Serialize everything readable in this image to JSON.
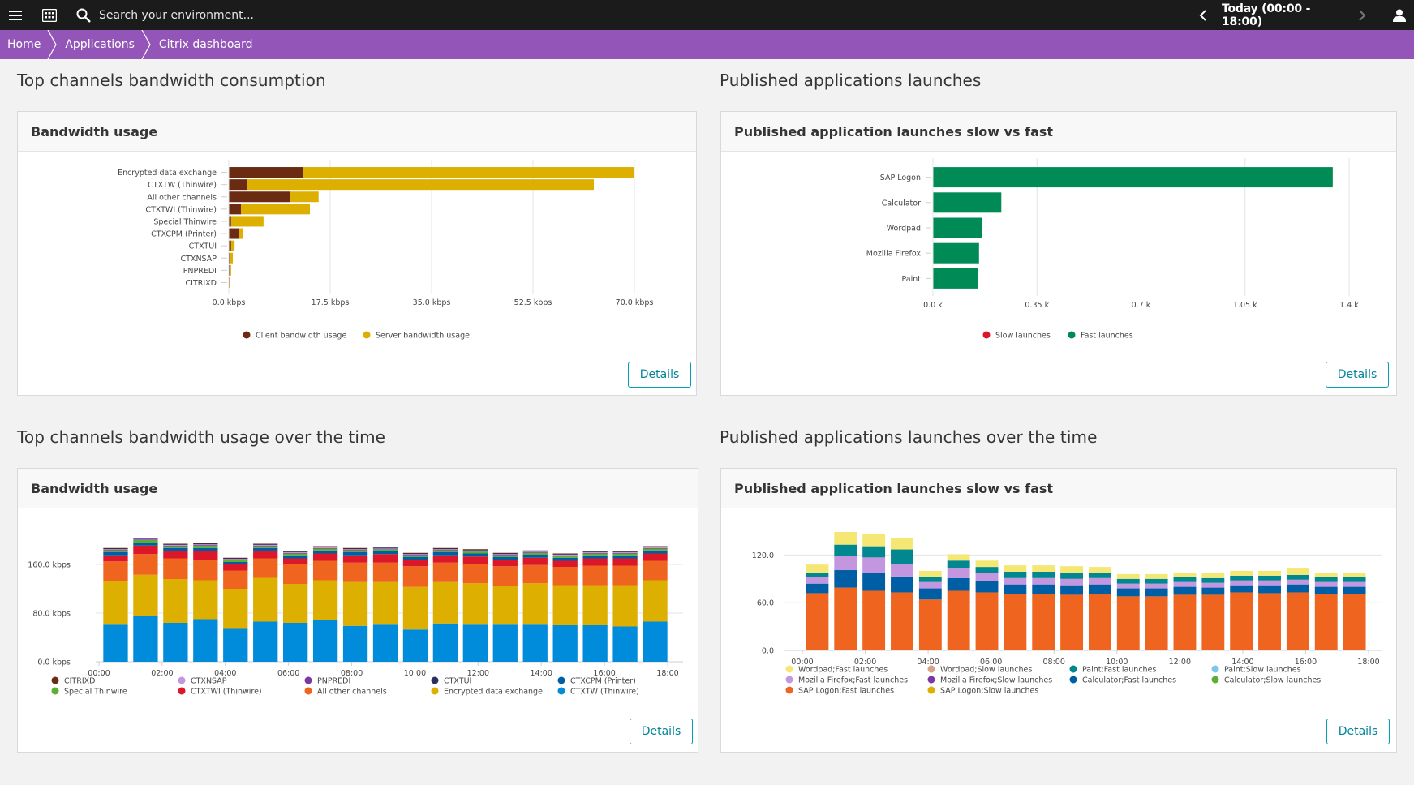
{
  "topbar": {
    "search_placeholder": "Search your environment...",
    "timeframe": "Today (00:00 - 18:00)",
    "menu_icon": "hamburger-menu-icon",
    "apps_icon": "apps-grid-icon",
    "search_icon": "search-icon",
    "prev_icon": "chevron-left-icon",
    "next_icon": "chevron-right-icon",
    "user_icon": "user-icon"
  },
  "breadcrumb": [
    "Home",
    "Applications",
    "Citrix dashboard"
  ],
  "sections": {
    "bandwidth_top": "Top channels bandwidth consumption",
    "launches_top": "Published applications launches",
    "bandwidth_time": "Top channels bandwidth usage over the time",
    "launches_time": "Published applications launches over the time"
  },
  "tiles": {
    "bandwidth_usage": "Bandwidth usage",
    "launches_slow_fast": "Published application launches slow vs fast",
    "bandwidth_usage_time": "Bandwidth usage",
    "launches_slow_fast_time": "Published application launches slow vs fast"
  },
  "details_label": "Details",
  "colors": {
    "accent_purple": "#9355b7",
    "topbar": "#1b1b1b",
    "button_border": "#00a1b2"
  },
  "chart_data": [
    {
      "id": "bandwidth-bar",
      "type": "bar",
      "orientation": "horizontal",
      "stacked": true,
      "categories": [
        "Encrypted data exchange",
        "CTXTW (Thinwire)",
        "All other channels",
        "CTXTWI (Thinwire)",
        "Special Thinwire",
        "CTXCPM (Printer)",
        "CTXTUI",
        "CTXNSAP",
        "PNPREDI",
        "CITRIXD"
      ],
      "series": [
        {
          "name": "Client bandwidth usage",
          "color": "#6b2a12",
          "values": [
            12.8,
            3.2,
            10.5,
            2.1,
            0.4,
            1.8,
            0.4,
            0.2,
            0.2,
            0.1
          ]
        },
        {
          "name": "Server bandwidth usage",
          "color": "#dcaf00",
          "values": [
            57.2,
            59.8,
            5.0,
            11.9,
            5.6,
            0.7,
            0.6,
            0.5,
            0.2,
            0.1
          ]
        }
      ],
      "x_ticks": [
        "0.0 kbps",
        "17.5 kbps",
        "35.0 kbps",
        "52.5 kbps",
        "70.0 kbps"
      ],
      "xlim": [
        0,
        70
      ],
      "unit": "kbps",
      "legend_position": "bottom",
      "grid": true
    },
    {
      "id": "launches-bar",
      "type": "bar",
      "orientation": "horizontal",
      "stacked": true,
      "categories": [
        "SAP Logon",
        "Calculator",
        "Wordpad",
        "Mozilla Firefox",
        "Paint"
      ],
      "series": [
        {
          "name": "Slow launches",
          "color": "#dc172a",
          "values": [
            0,
            0,
            0,
            0,
            0
          ]
        },
        {
          "name": "Fast launches",
          "color": "#008a55",
          "values": [
            1345,
            230,
            165,
            155,
            152
          ]
        }
      ],
      "x_ticks": [
        "0.0 k",
        "0.35 k",
        "0.7 k",
        "1.05 k",
        "1.4 k"
      ],
      "xlim": [
        0,
        1400
      ],
      "legend_position": "bottom",
      "grid": true
    },
    {
      "id": "bandwidth-time",
      "type": "bar",
      "stacked": true,
      "x_ticks": [
        "00:00",
        "02:00",
        "04:00",
        "06:00",
        "08:00",
        "10:00",
        "12:00",
        "14:00",
        "16:00",
        "18:00"
      ],
      "y_ticks": [
        "0.0 kbps",
        "80.0 kbps",
        "160.0 kbps"
      ],
      "ylim": [
        0,
        200
      ],
      "legend_position": "bottom",
      "grid": true,
      "series": [
        {
          "name": "CTXTW (Thinwire)",
          "color": "#008cdb",
          "values": [
            61,
            75,
            64,
            70,
            54,
            66,
            64,
            68,
            59,
            61,
            53,
            63,
            61,
            61,
            61,
            60,
            60,
            58,
            66
          ]
        },
        {
          "name": "Encrypted data exchange",
          "color": "#dcaf00",
          "values": [
            72,
            68,
            72,
            64,
            66,
            72,
            64,
            66,
            72,
            70,
            70,
            68,
            68,
            64,
            68,
            66,
            66,
            68,
            68
          ]
        },
        {
          "name": "All other channels",
          "color": "#ef651f",
          "values": [
            32,
            34,
            34,
            34,
            30,
            32,
            32,
            32,
            32,
            32,
            34,
            32,
            32,
            32,
            30,
            30,
            32,
            32,
            32
          ]
        },
        {
          "name": "CTXTWI (Thinwire)",
          "color": "#dc172a",
          "values": [
            10,
            14,
            12,
            14,
            10,
            12,
            10,
            12,
            12,
            14,
            10,
            12,
            12,
            10,
            12,
            10,
            12,
            12,
            12
          ]
        },
        {
          "name": "CTXCPM (Printer)",
          "color": "#005ea5",
          "values": [
            5,
            5,
            5,
            5,
            4,
            5,
            5,
            5,
            5,
            5,
            5,
            5,
            5,
            5,
            5,
            5,
            5,
            5,
            5
          ]
        },
        {
          "name": "Special Thinwire",
          "color": "#5ead35",
          "values": [
            3,
            4,
            3,
            4,
            3,
            3,
            3,
            3,
            3,
            3,
            3,
            3,
            3,
            3,
            3,
            3,
            3,
            3,
            3
          ]
        },
        {
          "name": "PNPREDI",
          "color": "#7c38a1",
          "values": [
            1,
            1,
            1,
            1,
            1,
            1,
            1,
            1,
            1,
            1,
            1,
            1,
            1,
            1,
            1,
            1,
            1,
            1,
            1
          ]
        },
        {
          "name": "CTXNSAP",
          "color": "#c396e0",
          "values": [
            1,
            1,
            1,
            1,
            1,
            1,
            1,
            1,
            1,
            1,
            1,
            1,
            1,
            1,
            1,
            1,
            1,
            1,
            1
          ]
        },
        {
          "name": "CTXTUI",
          "color": "#2d2d5f",
          "values": [
            1,
            1,
            1,
            1,
            1,
            1,
            1,
            1,
            1,
            1,
            1,
            1,
            1,
            1,
            1,
            1,
            1,
            1,
            1
          ]
        },
        {
          "name": "CITRIXD",
          "color": "#6b2a12",
          "values": [
            1,
            1,
            1,
            1,
            1,
            1,
            1,
            1,
            1,
            1,
            1,
            1,
            1,
            1,
            1,
            1,
            1,
            1,
            1
          ]
        }
      ],
      "legend_order": [
        "CITRIXD",
        "CTXNSAP",
        "PNPREDI",
        "CTXTUI",
        "CTXCPM (Printer)",
        "Special Thinwire",
        "CTXTWI (Thinwire)",
        "All other channels",
        "Encrypted data exchange",
        "CTXTW (Thinwire)"
      ]
    },
    {
      "id": "launches-time",
      "type": "bar",
      "stacked": true,
      "x_ticks": [
        "00:00",
        "02:00",
        "04:00",
        "06:00",
        "08:00",
        "10:00",
        "12:00",
        "14:00",
        "16:00",
        "18:00"
      ],
      "y_ticks": [
        "0.0",
        "60.0",
        "120.0"
      ],
      "ylim": [
        0,
        150
      ],
      "legend_position": "bottom",
      "grid": true,
      "series": [
        {
          "name": "SAP Logon;Fast launches",
          "color": "#ef651f",
          "values": [
            72,
            79,
            75,
            73,
            64,
            75,
            73,
            71,
            71,
            70,
            71,
            68,
            68,
            70,
            70,
            73,
            72,
            73,
            71,
            71
          ]
        },
        {
          "name": "Calculator;Fast launches",
          "color": "#005ea5",
          "values": [
            12,
            22,
            22,
            20,
            14,
            16,
            14,
            12,
            12,
            12,
            12,
            10,
            10,
            10,
            9,
            9,
            10,
            10,
            9,
            9
          ]
        },
        {
          "name": "Mozilla Firefox;Fast launches",
          "color": "#c396e0",
          "values": [
            8,
            18,
            20,
            16,
            8,
            12,
            10,
            8,
            8,
            8,
            8,
            6,
            6,
            6,
            6,
            6,
            6,
            6,
            6,
            6
          ]
        },
        {
          "name": "Paint;Fast launches",
          "color": "#00878f",
          "values": [
            6,
            14,
            14,
            18,
            6,
            10,
            8,
            8,
            8,
            8,
            6,
            6,
            6,
            6,
            6,
            6,
            6,
            6,
            6,
            6
          ]
        },
        {
          "name": "Wordpad;Fast launches",
          "color": "#f5e774",
          "values": [
            10,
            16,
            16,
            14,
            8,
            8,
            8,
            8,
            8,
            8,
            8,
            6,
            6,
            6,
            6,
            6,
            6,
            8,
            6,
            6
          ]
        },
        {
          "name": "Wordpad;Slow launches",
          "color": "#d7a28a",
          "values": [
            0,
            0,
            0,
            0,
            0,
            0,
            0,
            0,
            0,
            0,
            0,
            0,
            0,
            0,
            0,
            0,
            0,
            0,
            0,
            0
          ]
        },
        {
          "name": "Mozilla Firefox;Slow launches",
          "color": "#7c38a1",
          "values": [
            0,
            0,
            0,
            0,
            0,
            0,
            0,
            0,
            0,
            0,
            0,
            0,
            0,
            0,
            0,
            0,
            0,
            0,
            0,
            0
          ]
        },
        {
          "name": "SAP Logon;Slow launches",
          "color": "#dcaf00",
          "values": [
            0,
            0,
            0,
            0,
            0,
            0,
            0,
            0,
            0,
            0,
            0,
            0,
            0,
            0,
            0,
            0,
            0,
            0,
            0,
            0
          ]
        },
        {
          "name": "Paint;Slow launches",
          "color": "#7dc8ea",
          "values": [
            0,
            0,
            0,
            0,
            0,
            0,
            0,
            0,
            0,
            0,
            0,
            0,
            0,
            0,
            0,
            0,
            0,
            0,
            0,
            0
          ]
        },
        {
          "name": "Calculator;Slow launches",
          "color": "#5ead35",
          "values": [
            0,
            0,
            0,
            0,
            0,
            0,
            0,
            0,
            0,
            0,
            0,
            0,
            0,
            0,
            0,
            0,
            0,
            0,
            0,
            0
          ]
        }
      ],
      "legend_order": [
        "Wordpad;Fast launches",
        "Wordpad;Slow launches",
        "Paint;Fast launches",
        "Paint;Slow launches",
        "Mozilla Firefox;Fast launches",
        "Mozilla Firefox;Slow launches",
        "Calculator;Fast launches",
        "Calculator;Slow launches",
        "SAP Logon;Fast launches",
        "SAP Logon;Slow launches"
      ]
    }
  ]
}
